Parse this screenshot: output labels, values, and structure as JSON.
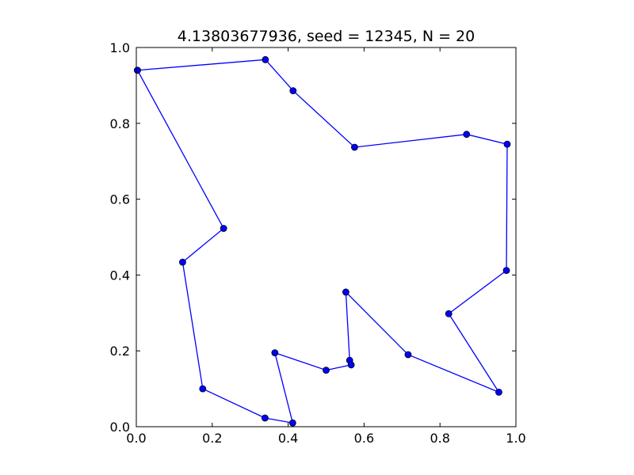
{
  "chart_data": {
    "type": "line",
    "title": "4.13803677936, seed = 12345, N = 20",
    "xlabel": "",
    "ylabel": "",
    "xlim": [
      0.0,
      1.0
    ],
    "ylim": [
      0.0,
      1.0
    ],
    "grid": false,
    "x_ticks": [
      "0.0",
      "0.2",
      "0.4",
      "0.6",
      "0.8",
      "1.0"
    ],
    "y_ticks": [
      "0.0",
      "0.2",
      "0.4",
      "0.6",
      "0.8",
      "1.0"
    ],
    "series": [
      {
        "color": "#0000ff",
        "marker": "circle",
        "x": [
          0.003,
          0.34,
          0.413,
          0.575,
          0.87,
          0.977,
          0.975,
          0.823,
          0.955,
          0.716,
          0.552,
          0.562,
          0.566,
          0.5,
          0.365,
          0.412,
          0.339,
          0.175,
          0.122,
          0.23,
          0.003
        ],
        "y": [
          0.94,
          0.968,
          0.886,
          0.737,
          0.771,
          0.745,
          0.412,
          0.298,
          0.091,
          0.19,
          0.355,
          0.175,
          0.163,
          0.149,
          0.195,
          0.01,
          0.023,
          0.1,
          0.434,
          0.523,
          0.94
        ]
      }
    ]
  }
}
